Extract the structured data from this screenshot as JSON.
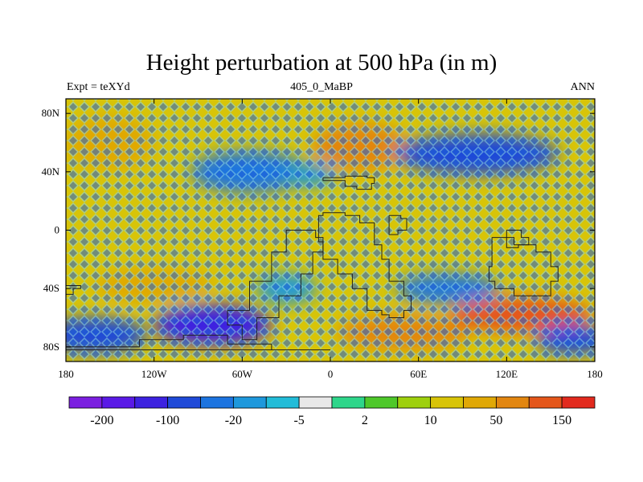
{
  "header": {
    "title": "Height perturbation at 500 hPa (in m)",
    "left": "Expt = teXYd",
    "center": "405_0_MaBP",
    "right": "ANN"
  },
  "axes": {
    "x_ticks": [
      {
        "value": -180,
        "label": "180"
      },
      {
        "value": -120,
        "label": "120W"
      },
      {
        "value": -60,
        "label": "60W"
      },
      {
        "value": 0,
        "label": "0"
      },
      {
        "value": 60,
        "label": "60E"
      },
      {
        "value": 120,
        "label": "120E"
      },
      {
        "value": 180,
        "label": "180"
      }
    ],
    "y_ticks": [
      {
        "value": 80,
        "label": "80N"
      },
      {
        "value": 40,
        "label": "40N"
      },
      {
        "value": 0,
        "label": "0"
      },
      {
        "value": -40,
        "label": "40S"
      },
      {
        "value": -80,
        "label": "80S"
      }
    ],
    "lon_range": [
      -180,
      180
    ],
    "lat_range": [
      -90,
      90
    ]
  },
  "colorbar": {
    "colors": [
      "#7b1fe0",
      "#5a1ae6",
      "#3d22e0",
      "#1f4ad8",
      "#1c74e0",
      "#1e98dc",
      "#22bcd8",
      "#e8e8e8",
      "#2ed68a",
      "#4ec82a",
      "#9ed00e",
      "#d8c408",
      "#e0a806",
      "#e28610",
      "#e4561a",
      "#e22a1e"
    ],
    "labels": [
      {
        "boundary": 1,
        "text": "-200"
      },
      {
        "boundary": 3,
        "text": "-100"
      },
      {
        "boundary": 5,
        "text": "-20"
      },
      {
        "boundary": 7,
        "text": "-5"
      },
      {
        "boundary": 9,
        "text": "2"
      },
      {
        "boundary": 11,
        "text": "10"
      },
      {
        "boundary": 13,
        "text": "50"
      },
      {
        "boundary": 15,
        "text": "150"
      }
    ]
  },
  "field": {
    "background": "#d8c408",
    "pattern_dark": "#1e5fd8",
    "pattern_light": "#8ed8e4",
    "regions": [
      {
        "lon": 20,
        "lat": 57,
        "rlon": 32,
        "rlat": 16,
        "color": "#e28610"
      },
      {
        "lon": -150,
        "lat": 60,
        "rlon": 30,
        "rlat": 18,
        "color": "#e0a806"
      },
      {
        "lon": 100,
        "lat": 52,
        "rlon": 55,
        "rlat": 14,
        "color": "#1f4ad8"
      },
      {
        "lon": -55,
        "lat": 40,
        "rlon": 40,
        "rlat": 14,
        "color": "#1c74e0"
      },
      {
        "lon": -15,
        "lat": 38,
        "rlon": 18,
        "rlat": 8,
        "color": "#1e98dc"
      },
      {
        "lon": -120,
        "lat": -38,
        "rlon": 40,
        "rlat": 12,
        "color": "#e0a806"
      },
      {
        "lon": 130,
        "lat": -58,
        "rlon": 48,
        "rlat": 12,
        "color": "#e4561a"
      },
      {
        "lon": 50,
        "lat": -70,
        "rlon": 45,
        "rlat": 12,
        "color": "#e28610"
      },
      {
        "lon": -80,
        "lat": -65,
        "rlon": 40,
        "rlat": 14,
        "color": "#3d22e0"
      },
      {
        "lon": -160,
        "lat": -72,
        "rlon": 35,
        "rlat": 12,
        "color": "#1f4ad8"
      },
      {
        "lon": 165,
        "lat": -75,
        "rlon": 25,
        "rlat": 10,
        "color": "#1f4ad8"
      },
      {
        "lon": 80,
        "lat": -40,
        "rlon": 35,
        "rlat": 10,
        "color": "#1c74e0"
      },
      {
        "lon": -30,
        "lat": -40,
        "rlon": 20,
        "rlat": 10,
        "color": "#1e98dc"
      }
    ]
  },
  "coastlines": [
    [
      [
        -5,
        36
      ],
      [
        10,
        37
      ],
      [
        25,
        36
      ],
      [
        30,
        32
      ],
      [
        28,
        28
      ],
      [
        18,
        30
      ],
      [
        10,
        34
      ],
      [
        -5,
        36
      ]
    ],
    [
      [
        -8,
        -8
      ],
      [
        -5,
        -20
      ],
      [
        5,
        -30
      ],
      [
        15,
        -40
      ],
      [
        25,
        -55
      ],
      [
        35,
        -58
      ],
      [
        40,
        -60
      ],
      [
        50,
        -55
      ],
      [
        55,
        -45
      ],
      [
        50,
        -35
      ],
      [
        40,
        -20
      ],
      [
        35,
        -10
      ],
      [
        30,
        5
      ],
      [
        20,
        10
      ],
      [
        10,
        12
      ],
      [
        -5,
        10
      ],
      [
        -8,
        -8
      ]
    ],
    [
      [
        -25,
        0
      ],
      [
        -10,
        -5
      ],
      [
        -5,
        -15
      ],
      [
        -12,
        -30
      ],
      [
        -20,
        -45
      ],
      [
        -35,
        -60
      ],
      [
        -50,
        -75
      ],
      [
        -60,
        -65
      ],
      [
        -70,
        -55
      ],
      [
        -55,
        -35
      ],
      [
        -40,
        -15
      ],
      [
        -30,
        0
      ],
      [
        -25,
        0
      ]
    ],
    [
      [
        110,
        -5
      ],
      [
        125,
        -10
      ],
      [
        140,
        -15
      ],
      [
        150,
        -25
      ],
      [
        155,
        -35
      ],
      [
        150,
        -45
      ],
      [
        138,
        -45
      ],
      [
        125,
        -40
      ],
      [
        112,
        -35
      ],
      [
        108,
        -25
      ],
      [
        110,
        -5
      ]
    ],
    [
      [
        120,
        0
      ],
      [
        130,
        -5
      ],
      [
        135,
        -10
      ],
      [
        128,
        -12
      ],
      [
        120,
        -5
      ],
      [
        120,
        0
      ]
    ],
    [
      [
        -180,
        -80
      ],
      [
        -130,
        -75
      ],
      [
        -100,
        -72
      ],
      [
        -70,
        -78
      ],
      [
        -40,
        -82
      ],
      [
        0,
        -82
      ],
      [
        -180,
        -82
      ],
      [
        -180,
        -80
      ]
    ],
    [
      [
        40,
        10
      ],
      [
        48,
        8
      ],
      [
        52,
        0
      ],
      [
        46,
        -3
      ],
      [
        40,
        5
      ],
      [
        40,
        10
      ]
    ],
    [
      [
        -180,
        -38
      ],
      [
        -170,
        -40
      ],
      [
        -175,
        -44
      ],
      [
        -180,
        -42
      ]
    ]
  ]
}
